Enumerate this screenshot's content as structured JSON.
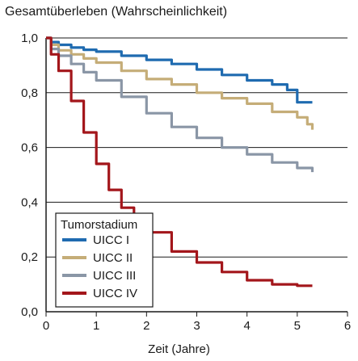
{
  "chart_data": {
    "type": "line",
    "title": "Gesamtüberleben (Wahrscheinlichkeit)",
    "xlabel": "Zeit (Jahre)",
    "ylabel": "",
    "xlim": [
      0,
      6
    ],
    "ylim": [
      0,
      1
    ],
    "x_ticks": [
      "0",
      "1",
      "2",
      "3",
      "4",
      "5",
      "6"
    ],
    "y_ticks": [
      "0,0",
      "0,2",
      "0,4",
      "0,6",
      "0,8",
      "1,0"
    ],
    "y_tick_values": [
      0,
      0.2,
      0.4,
      0.6,
      0.8,
      1.0
    ],
    "x_tick_values": [
      0,
      1,
      2,
      3,
      4,
      5,
      6
    ],
    "grid": "horizontal",
    "legend": {
      "title": "Tumorstadium",
      "placement": "bottom-left"
    },
    "series": [
      {
        "name": "UICC I",
        "color": "#1f6bb0",
        "x": [
          0,
          0.1,
          0.25,
          0.5,
          0.75,
          1,
          1.5,
          2,
          2.5,
          3,
          3.5,
          4,
          4.5,
          4.8,
          5,
          5.3
        ],
        "y": [
          1.0,
          0.985,
          0.975,
          0.965,
          0.957,
          0.95,
          0.935,
          0.92,
          0.905,
          0.885,
          0.865,
          0.845,
          0.83,
          0.81,
          0.765,
          0.765
        ]
      },
      {
        "name": "UICC II",
        "color": "#c5ad78",
        "x": [
          0,
          0.1,
          0.25,
          0.5,
          0.75,
          1,
          1.5,
          2,
          2.5,
          3,
          3.5,
          4,
          4.5,
          5,
          5.2,
          5.3
        ],
        "y": [
          1.0,
          0.975,
          0.955,
          0.94,
          0.925,
          0.91,
          0.88,
          0.85,
          0.83,
          0.8,
          0.78,
          0.76,
          0.73,
          0.71,
          0.685,
          0.665
        ]
      },
      {
        "name": "UICC III",
        "color": "#8a96a6",
        "x": [
          0,
          0.1,
          0.25,
          0.5,
          0.75,
          1,
          1.5,
          2,
          2.5,
          3,
          3.5,
          4,
          4.5,
          5,
          5.3
        ],
        "y": [
          1.0,
          0.96,
          0.935,
          0.905,
          0.875,
          0.845,
          0.785,
          0.725,
          0.675,
          0.635,
          0.6,
          0.575,
          0.545,
          0.525,
          0.51
        ]
      },
      {
        "name": "UICC IV",
        "color": "#a3161b",
        "x": [
          0,
          0.1,
          0.25,
          0.5,
          0.75,
          1,
          1.25,
          1.5,
          1.75,
          2,
          2.5,
          3,
          3.5,
          4,
          4.5,
          5,
          5.3
        ],
        "y": [
          1.0,
          0.94,
          0.88,
          0.77,
          0.655,
          0.54,
          0.445,
          0.38,
          0.33,
          0.29,
          0.22,
          0.18,
          0.145,
          0.115,
          0.1,
          0.095,
          0.095
        ]
      }
    ]
  }
}
